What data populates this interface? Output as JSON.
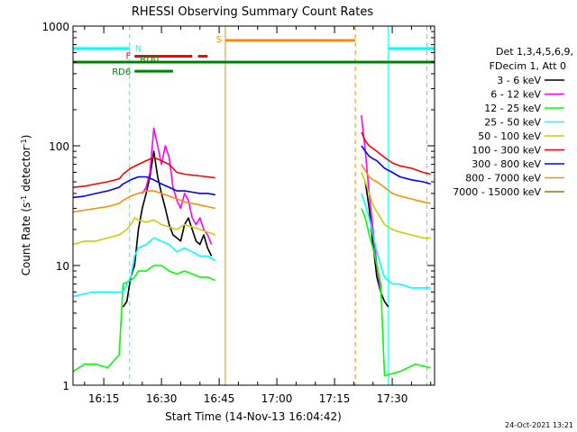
{
  "chart_data": {
    "type": "line",
    "title": "RHESSI Observing Summary Count Rates",
    "xlabel": "Start Time (14-Nov-13 16:04:42)",
    "ylabel_parts": [
      "Count Rate (s",
      "-1",
      " detector",
      "-1",
      ")"
    ],
    "y_scale": "log",
    "ylim": [
      1,
      1000
    ],
    "y_ticks": [
      {
        "v": 1,
        "label": "1"
      },
      {
        "v": 10,
        "label": "10"
      },
      {
        "v": 100,
        "label": "100"
      },
      {
        "v": 1000,
        "label": "1000"
      }
    ],
    "x_range_min": [
      7,
      101
    ],
    "x_ticks": [
      {
        "v": 15,
        "label": "16:15"
      },
      {
        "v": 30,
        "label": "16:30"
      },
      {
        "v": 45,
        "label": "16:45"
      },
      {
        "v": 60,
        "label": "17:00"
      },
      {
        "v": 75,
        "label": "17:15"
      },
      {
        "v": 90,
        "label": "17:30"
      }
    ],
    "legend_header": [
      "Det 1,3,4,5,6,9,",
      "FDecim 1, Att 0"
    ],
    "series": [
      {
        "name": "3 - 6 keV",
        "color": "#000000",
        "points": [
          [
            7,
            null
          ],
          [
            20,
            4.5
          ],
          [
            21,
            5
          ],
          [
            22,
            8
          ],
          [
            23,
            10
          ],
          [
            24,
            20
          ],
          [
            25,
            30
          ],
          [
            26,
            40
          ],
          [
            27,
            55
          ],
          [
            28,
            90
          ],
          [
            29,
            55
          ],
          [
            30,
            40
          ],
          [
            31,
            30
          ],
          [
            32,
            22
          ],
          [
            33,
            18
          ],
          [
            34,
            17
          ],
          [
            35,
            16
          ],
          [
            36,
            22
          ],
          [
            37,
            25
          ],
          [
            38,
            20
          ],
          [
            39,
            16
          ],
          [
            40,
            15
          ],
          [
            41,
            18
          ],
          [
            42,
            14
          ],
          [
            43,
            12
          ],
          [
            44,
            null
          ],
          [
            82,
            null
          ],
          [
            83,
            50
          ],
          [
            84,
            30
          ],
          [
            85,
            15
          ],
          [
            86,
            8
          ],
          [
            87,
            6
          ],
          [
            88,
            5
          ],
          [
            89,
            4.5
          ],
          [
            90,
            null
          ]
        ]
      },
      {
        "name": "6 - 12 keV",
        "color": "#ff00ff",
        "points": [
          [
            24,
            null
          ],
          [
            25,
            40
          ],
          [
            26,
            45
          ],
          [
            27,
            60
          ],
          [
            28,
            140
          ],
          [
            29,
            100
          ],
          [
            30,
            70
          ],
          [
            31,
            100
          ],
          [
            32,
            80
          ],
          [
            33,
            45
          ],
          [
            34,
            35
          ],
          [
            35,
            30
          ],
          [
            36,
            40
          ],
          [
            37,
            35
          ],
          [
            38,
            25
          ],
          [
            39,
            22
          ],
          [
            40,
            25
          ],
          [
            41,
            20
          ],
          [
            42,
            18
          ],
          [
            43,
            15
          ],
          [
            44,
            null
          ],
          [
            81,
            null
          ],
          [
            82,
            180
          ],
          [
            83,
            90
          ],
          [
            84,
            40
          ],
          [
            85,
            20
          ],
          [
            86,
            10
          ],
          [
            87,
            6
          ],
          [
            88,
            null
          ]
        ]
      },
      {
        "name": "12 - 25 keV",
        "color": "#00ff00",
        "points": [
          [
            7,
            1.3
          ],
          [
            10,
            1.5
          ],
          [
            13,
            1.5
          ],
          [
            16,
            1.4
          ],
          [
            19,
            1.8
          ],
          [
            20,
            7
          ],
          [
            22,
            7.5
          ],
          [
            23,
            8
          ],
          [
            24,
            9
          ],
          [
            26,
            9
          ],
          [
            28,
            10
          ],
          [
            30,
            10
          ],
          [
            32,
            9
          ],
          [
            34,
            8.5
          ],
          [
            36,
            9
          ],
          [
            38,
            8.5
          ],
          [
            40,
            8
          ],
          [
            42,
            8
          ],
          [
            44,
            7.5
          ],
          [
            44.2,
            null
          ],
          [
            81,
            null
          ],
          [
            82,
            30
          ],
          [
            83,
            25
          ],
          [
            84,
            18
          ],
          [
            85,
            14
          ],
          [
            86,
            10
          ],
          [
            87,
            7
          ],
          [
            88,
            1.2
          ],
          [
            92,
            1.3
          ],
          [
            96,
            1.5
          ],
          [
            100,
            1.4
          ]
        ]
      },
      {
        "name": "25 - 50 keV",
        "color": "#00ffff",
        "points": [
          [
            7,
            5.5
          ],
          [
            12,
            6
          ],
          [
            16,
            6
          ],
          [
            19,
            6
          ],
          [
            20,
            6
          ],
          [
            21,
            7
          ],
          [
            22,
            8
          ],
          [
            23,
            12
          ],
          [
            24,
            14
          ],
          [
            26,
            15
          ],
          [
            28,
            17
          ],
          [
            30,
            16
          ],
          [
            32,
            15
          ],
          [
            34,
            13
          ],
          [
            36,
            14
          ],
          [
            38,
            13
          ],
          [
            40,
            12
          ],
          [
            42,
            12
          ],
          [
            44,
            11
          ],
          [
            44.2,
            null
          ],
          [
            81,
            null
          ],
          [
            82,
            40
          ],
          [
            83,
            32
          ],
          [
            84,
            25
          ],
          [
            85,
            18
          ],
          [
            86,
            13
          ],
          [
            87,
            10
          ],
          [
            88,
            8
          ],
          [
            90,
            7
          ],
          [
            92,
            7
          ],
          [
            95,
            6.5
          ],
          [
            98,
            6.5
          ],
          [
            100,
            6.5
          ]
        ]
      },
      {
        "name": "50 - 100 keV",
        "color": "#cccc00",
        "points": [
          [
            7,
            15
          ],
          [
            10,
            16
          ],
          [
            13,
            16
          ],
          [
            16,
            17
          ],
          [
            19,
            18
          ],
          [
            20,
            19
          ],
          [
            21,
            20
          ],
          [
            22,
            22
          ],
          [
            23,
            25
          ],
          [
            24,
            24
          ],
          [
            26,
            23
          ],
          [
            28,
            24
          ],
          [
            30,
            22
          ],
          [
            32,
            21
          ],
          [
            34,
            20
          ],
          [
            36,
            22
          ],
          [
            38,
            21
          ],
          [
            40,
            20
          ],
          [
            42,
            19
          ],
          [
            44,
            18
          ],
          [
            44.2,
            null
          ],
          [
            81,
            null
          ],
          [
            82,
            60
          ],
          [
            83,
            50
          ],
          [
            84,
            40
          ],
          [
            85,
            32
          ],
          [
            86,
            28
          ],
          [
            87,
            25
          ],
          [
            88,
            22
          ],
          [
            90,
            20
          ],
          [
            92,
            19
          ],
          [
            95,
            18
          ],
          [
            98,
            17
          ],
          [
            100,
            17
          ]
        ]
      },
      {
        "name": "100 - 300 keV",
        "color": "#ff0000",
        "points": [
          [
            7,
            45
          ],
          [
            10,
            46
          ],
          [
            13,
            48
          ],
          [
            16,
            50
          ],
          [
            19,
            53
          ],
          [
            20,
            58
          ],
          [
            22,
            65
          ],
          [
            24,
            70
          ],
          [
            26,
            75
          ],
          [
            28,
            80
          ],
          [
            30,
            75
          ],
          [
            32,
            70
          ],
          [
            34,
            60
          ],
          [
            36,
            58
          ],
          [
            38,
            57
          ],
          [
            40,
            56
          ],
          [
            42,
            55
          ],
          [
            44,
            54
          ],
          [
            44.2,
            null
          ],
          [
            81,
            null
          ],
          [
            82,
            130
          ],
          [
            83,
            110
          ],
          [
            84,
            100
          ],
          [
            85,
            95
          ],
          [
            86,
            90
          ],
          [
            88,
            80
          ],
          [
            90,
            72
          ],
          [
            92,
            68
          ],
          [
            95,
            65
          ],
          [
            98,
            60
          ],
          [
            100,
            58
          ]
        ]
      },
      {
        "name": "300 - 800 keV",
        "color": "#0000ff",
        "points": [
          [
            7,
            37
          ],
          [
            10,
            38
          ],
          [
            13,
            40
          ],
          [
            16,
            42
          ],
          [
            19,
            45
          ],
          [
            20,
            48
          ],
          [
            22,
            52
          ],
          [
            24,
            55
          ],
          [
            26,
            55
          ],
          [
            28,
            52
          ],
          [
            30,
            48
          ],
          [
            32,
            45
          ],
          [
            34,
            42
          ],
          [
            36,
            42
          ],
          [
            38,
            41
          ],
          [
            40,
            40
          ],
          [
            42,
            40
          ],
          [
            44,
            39
          ],
          [
            44.2,
            null
          ],
          [
            81,
            null
          ],
          [
            82,
            100
          ],
          [
            83,
            90
          ],
          [
            84,
            82
          ],
          [
            85,
            78
          ],
          [
            86,
            75
          ],
          [
            88,
            65
          ],
          [
            90,
            60
          ],
          [
            92,
            55
          ],
          [
            95,
            52
          ],
          [
            98,
            50
          ],
          [
            100,
            48
          ]
        ]
      },
      {
        "name": "800 - 7000 keV",
        "color": "#ff8c00",
        "points": [
          [
            7,
            28
          ],
          [
            10,
            29
          ],
          [
            13,
            30
          ],
          [
            16,
            31
          ],
          [
            19,
            33
          ],
          [
            20,
            35
          ],
          [
            22,
            38
          ],
          [
            24,
            40
          ],
          [
            26,
            42
          ],
          [
            28,
            42
          ],
          [
            30,
            40
          ],
          [
            32,
            38
          ],
          [
            34,
            36
          ],
          [
            36,
            34
          ],
          [
            38,
            33
          ],
          [
            40,
            32
          ],
          [
            42,
            31
          ],
          [
            44,
            30
          ],
          [
            44.2,
            null
          ],
          [
            81,
            null
          ],
          [
            82,
            70
          ],
          [
            83,
            62
          ],
          [
            84,
            55
          ],
          [
            85,
            52
          ],
          [
            86,
            50
          ],
          [
            88,
            45
          ],
          [
            90,
            40
          ],
          [
            92,
            38
          ],
          [
            95,
            36
          ],
          [
            98,
            34
          ],
          [
            100,
            33
          ]
        ]
      },
      {
        "name": "7000 - 15000 keV",
        "color": "#8b7a1c",
        "points": []
      }
    ],
    "annotations": [
      {
        "label": "N",
        "color": "#00ffff",
        "segments": [
          [
            7,
            21.7
          ],
          [
            89,
            101
          ]
        ],
        "y": 650
      },
      {
        "label": "S",
        "color": "#ff8c00",
        "segments": [
          [
            46.6,
            80.4
          ]
        ],
        "y": 760
      },
      {
        "label": "F",
        "color": "#ff0000",
        "segments": [
          [
            23,
            38
          ],
          [
            39.5,
            42
          ]
        ],
        "y": 560
      },
      {
        "label": "RD0",
        "color": "#008000",
        "segments": [
          [
            7,
            101
          ]
        ],
        "y": 500
      },
      {
        "label": "RD6",
        "color": "#008000",
        "segments": [
          [
            23,
            33
          ]
        ],
        "y": 420
      }
    ],
    "vlines": [
      {
        "x": 21.7,
        "color": "#00ffff",
        "dashed": true
      },
      {
        "x": 46.6,
        "color": "#ff8c00",
        "dashed": false
      },
      {
        "x": 80.4,
        "color": "#ff8c00",
        "dashed": true
      },
      {
        "x": 89,
        "color": "#00ffff",
        "dashed": false
      },
      {
        "x": 99,
        "color": "#00ffff",
        "dashed": true
      }
    ],
    "timestamp": "24-Oct-2021 13:21"
  }
}
